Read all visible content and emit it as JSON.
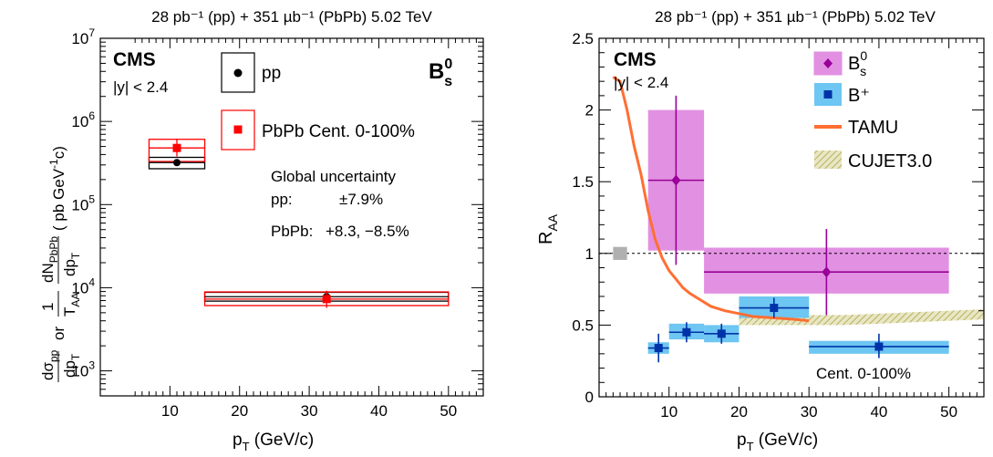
{
  "figure": {
    "left_header": "28 pb⁻¹ (pp) + 351 µb⁻¹ (PbPb) 5.02 TeV",
    "right_header": "28 pb⁻¹ (pp) + 351 µb⁻¹ (PbPb) 5.02 TeV"
  },
  "chart_data": [
    {
      "type": "scatter",
      "panel": "left",
      "xlabel": "p_T (GeV/c)",
      "ylabel": "dσ_pp/dp_T or (1/T_AA) dN_PbPb/dp_T ( pb GeV⁻¹c)",
      "yscale": "log",
      "xlim": [
        0,
        55
      ],
      "ylim": [
        500,
        10000000
      ],
      "x_ticks": [
        "10",
        "20",
        "30",
        "40",
        "50"
      ],
      "y_ticks": [
        "10^3",
        "10^4",
        "10^5",
        "10^6",
        "10^7"
      ],
      "experiment": "CMS",
      "rapidity": "|y| < 2.4",
      "particle": "B_s^0",
      "global_uncertainty": {
        "title": "Global uncertainty",
        "pp_label": "pp:",
        "pp_value": "±7.9%",
        "pbpb_label": "PbPb:",
        "pbpb_value": "+8.3, −8.5%"
      },
      "series": [
        {
          "name": "pp",
          "color": "#000000",
          "marker": "circle",
          "points": [
            {
              "x": 11,
              "xlo": 7,
              "xhi": 15,
              "y": 320000,
              "stat_lo": 300000,
              "stat_hi": 345000,
              "sys_lo": 270000,
              "sys_hi": 370000
            },
            {
              "x": 32.5,
              "xlo": 15,
              "xhi": 50,
              "y": 7800,
              "stat_lo": 7300,
              "stat_hi": 8300,
              "sys_lo": 6900,
              "sys_hi": 8800
            }
          ]
        },
        {
          "name": "PbPb Cent. 0-100%",
          "color": "#ff0000",
          "marker": "square",
          "points": [
            {
              "x": 11,
              "xlo": 7,
              "xhi": 15,
              "y": 480000,
              "stat_lo": 380000,
              "stat_hi": 620000,
              "sys_lo": 330000,
              "sys_hi": 610000
            },
            {
              "x": 32.5,
              "xlo": 15,
              "xhi": 50,
              "y": 7300,
              "stat_lo": 5700,
              "stat_hi": 9200,
              "sys_lo": 6100,
              "sys_hi": 8900
            }
          ]
        }
      ]
    },
    {
      "type": "scatter",
      "panel": "right",
      "xlabel": "p_T (GeV/c)",
      "ylabel": "R_AA",
      "xlim": [
        0,
        55
      ],
      "ylim": [
        0,
        2.5
      ],
      "x_ticks": [
        "10",
        "20",
        "30",
        "40",
        "50"
      ],
      "y_ticks": [
        "0",
        "0.5",
        "1",
        "1.5",
        "2",
        "2.5"
      ],
      "experiment": "CMS",
      "rapidity": "|y| < 2.4",
      "annotation": "Cent. 0-100%",
      "reference_line": 1,
      "global_band": {
        "x": [
          2,
          4
        ],
        "y": [
          0.98,
          1.02
        ]
      },
      "series": [
        {
          "name": "B_s^0",
          "color": "#990099",
          "fill": "#e291e2",
          "marker": "diamond",
          "points": [
            {
              "x": 11,
              "xlo": 7,
              "xhi": 15,
              "y": 1.51,
              "stat_lo": 0.92,
              "stat_hi": 2.1,
              "sys_lo": 1.02,
              "sys_hi": 2.0
            },
            {
              "x": 32.5,
              "xlo": 15,
              "xhi": 50,
              "y": 0.87,
              "stat_lo": 0.57,
              "stat_hi": 1.17,
              "sys_lo": 0.72,
              "sys_hi": 1.04
            }
          ]
        },
        {
          "name": "B⁺",
          "color": "#0033aa",
          "fill": "#6ec6f2",
          "marker": "square",
          "points": [
            {
              "x": 8.5,
              "xlo": 7,
              "xhi": 10,
              "y": 0.34,
              "stat_lo": 0.24,
              "stat_hi": 0.44,
              "sys_lo": 0.3,
              "sys_hi": 0.38
            },
            {
              "x": 12.5,
              "xlo": 10,
              "xhi": 15,
              "y": 0.45,
              "stat_lo": 0.38,
              "stat_hi": 0.52,
              "sys_lo": 0.4,
              "sys_hi": 0.51
            },
            {
              "x": 17.5,
              "xlo": 15,
              "xhi": 20,
              "y": 0.44,
              "stat_lo": 0.37,
              "stat_hi": 0.51,
              "sys_lo": 0.38,
              "sys_hi": 0.5
            },
            {
              "x": 25,
              "xlo": 20,
              "xhi": 30,
              "y": 0.62,
              "stat_lo": 0.55,
              "stat_hi": 0.69,
              "sys_lo": 0.55,
              "sys_hi": 0.7
            },
            {
              "x": 40,
              "xlo": 30,
              "xhi": 50,
              "y": 0.35,
              "stat_lo": 0.27,
              "stat_hi": 0.44,
              "sys_lo": 0.3,
              "sys_hi": 0.39
            }
          ]
        }
      ],
      "models": [
        {
          "name": "TAMU",
          "color": "#ff6f33",
          "x": [
            2,
            3,
            4,
            5,
            6,
            7,
            8,
            9,
            10,
            11,
            12,
            13,
            14,
            16,
            18,
            20,
            22,
            25,
            28,
            30
          ],
          "y": [
            2.23,
            2.2,
            2.0,
            1.75,
            1.55,
            1.3,
            1.1,
            0.97,
            0.88,
            0.82,
            0.76,
            0.72,
            0.69,
            0.63,
            0.6,
            0.58,
            0.56,
            0.55,
            0.54,
            0.53
          ]
        },
        {
          "name": "CUJET3.0",
          "color": "#b8b25c",
          "x": [
            20,
            25,
            30,
            35,
            40,
            45,
            50,
            55
          ],
          "y_low": [
            0.5,
            0.5,
            0.5,
            0.5,
            0.51,
            0.52,
            0.53,
            0.54
          ],
          "y_high": [
            0.58,
            0.57,
            0.57,
            0.57,
            0.58,
            0.59,
            0.6,
            0.61
          ]
        }
      ]
    }
  ]
}
